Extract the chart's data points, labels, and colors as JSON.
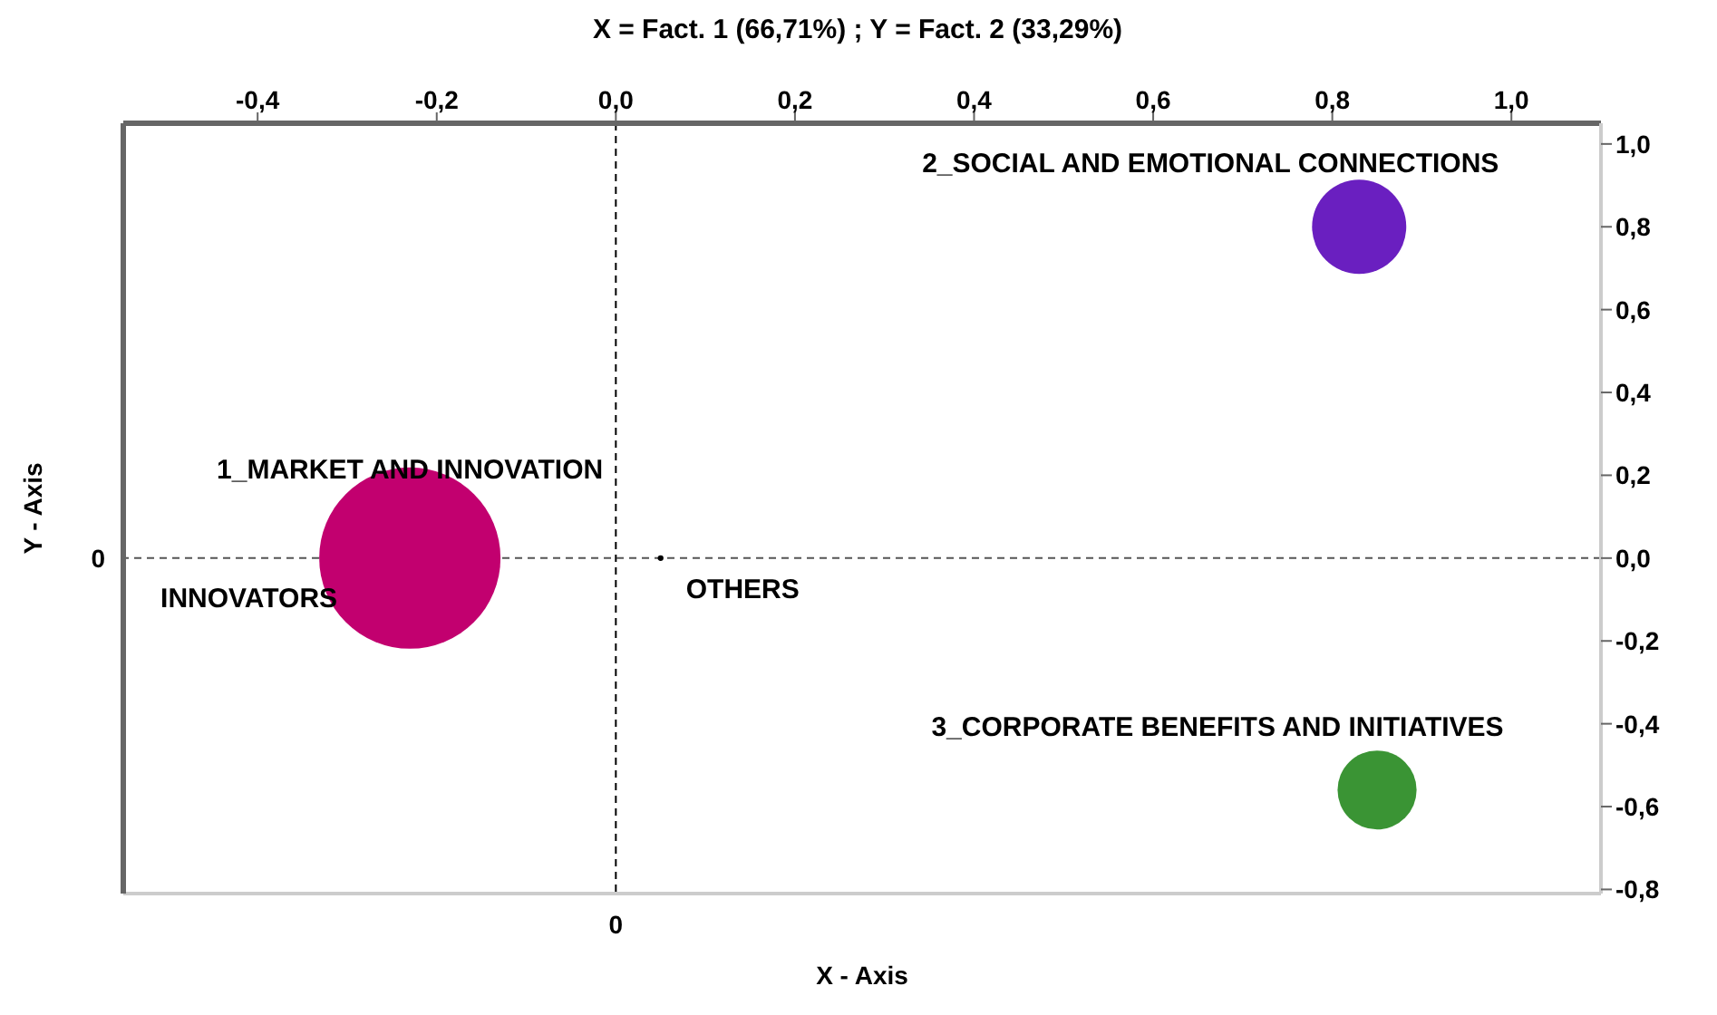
{
  "chart_data": {
    "type": "bubble",
    "title": "X = Fact. 1 (66,71%) ; Y = Fact. 2 (33,29%)",
    "xlabel": "X - Axis",
    "ylabel": "Y - Axis",
    "xlim": [
      -0.55,
      1.1
    ],
    "xticks": [
      {
        "value": -0.4,
        "label": "-0,4"
      },
      {
        "value": -0.2,
        "label": "-0,2"
      },
      {
        "value": 0,
        "label": "0,0"
      },
      {
        "value": 0.2,
        "label": "0,2"
      },
      {
        "value": 0.4,
        "label": "0,4"
      },
      {
        "value": 0.6,
        "label": "0,6"
      },
      {
        "value": 0.8,
        "label": "0,8"
      },
      {
        "value": 1,
        "label": "1,0"
      }
    ],
    "ylim": [
      -0.81,
      1.05
    ],
    "yticks": [
      {
        "value": 1,
        "label": "1,0"
      },
      {
        "value": 0.8,
        "label": "0,8"
      },
      {
        "value": 0.6,
        "label": "0,6"
      },
      {
        "value": 0.4,
        "label": "0,4"
      },
      {
        "value": 0.2,
        "label": "0,2"
      },
      {
        "value": 0,
        "label": "0,0"
      },
      {
        "value": -0.2,
        "label": "-0,2"
      },
      {
        "value": -0.4,
        "label": "-0,4"
      },
      {
        "value": -0.6,
        "label": "-0,6"
      },
      {
        "value": -0.8,
        "label": "-0,8"
      }
    ],
    "series": [
      {
        "x": [
          -0.23,
          0.05,
          0.83,
          0.85
        ],
        "values": [
          0,
          0,
          0.8,
          -0.56
        ],
        "sizes": [
          1,
          0.001,
          0.27,
          0.19
        ],
        "colors": [
          "#c2006f",
          "#000000",
          "#6a1fc0",
          "#3a9434"
        ]
      }
    ],
    "ref_lines": [
      {
        "axis": "x",
        "value": 0,
        "label": "0",
        "color": "#000000",
        "line_style": "dashed"
      },
      {
        "axis": "y",
        "value": 0,
        "label": "0",
        "color": "#555555",
        "line_style": "dashed"
      }
    ],
    "annotations": [
      {
        "text": "1_MARKET AND INNOVATION",
        "x": -0.23,
        "y": 0
      },
      {
        "text": "INNOVATORS",
        "x": -0.23,
        "y": 0
      },
      {
        "text": "OTHERS",
        "x": 0.05,
        "y": 0
      },
      {
        "text": "2_SOCIAL AND EMOTIONAL CONNECTIONS",
        "x": 0.83,
        "y": 0.8
      },
      {
        "text": "3_CORPORATE BENEFITS AND INITIATIVES",
        "x": 0.85,
        "y": -0.56
      }
    ]
  }
}
